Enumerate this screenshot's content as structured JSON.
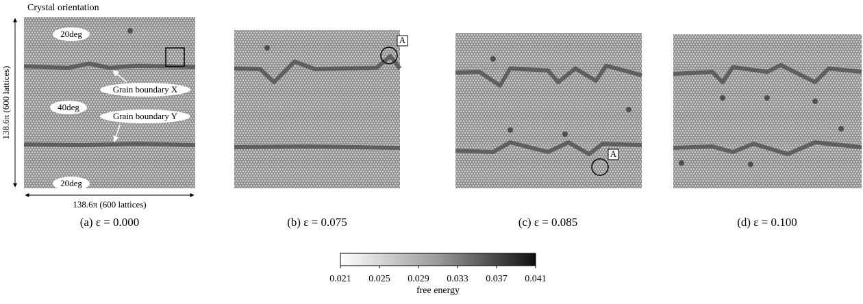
{
  "header": {
    "title": "Crystal orientation"
  },
  "panel_a": {
    "caption": "(a) ε = 0.000",
    "height_label": "138.6π (600 lattices)",
    "width_label": "138.6π (600 lattices)",
    "labels": [
      "20deg",
      "Grain boundary X",
      "40deg",
      "Grain boundary Y",
      "20deg"
    ]
  },
  "panel_b": {
    "caption": "(b) ε = 0.075",
    "marker": "A"
  },
  "panel_c": {
    "caption": "(c) ε = 0.085",
    "marker": "A"
  },
  "panel_d": {
    "caption": "(d) ε = 0.100"
  },
  "colorbar": {
    "range": [
      0.021,
      0.041
    ],
    "ticks": [
      0.021,
      0.025,
      0.029,
      0.033,
      0.037,
      0.041
    ],
    "label": "free energy"
  }
}
